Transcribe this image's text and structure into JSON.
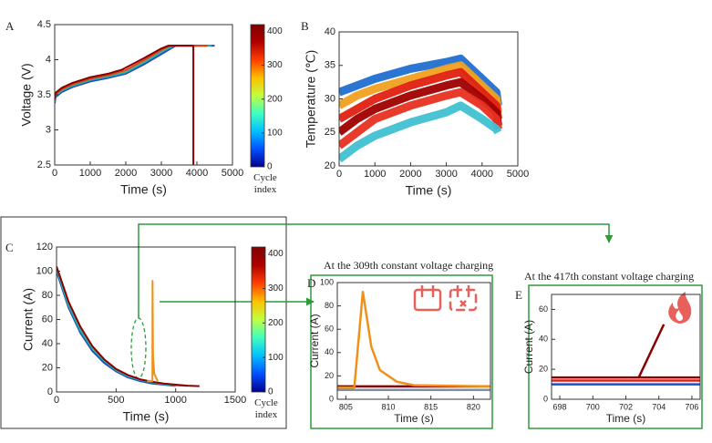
{
  "chart_data": [
    {
      "type": "line",
      "panel": "A",
      "xlabel": "Time (s)",
      "ylabel": "Voltage (V)",
      "xlim": [
        0,
        5000
      ],
      "ylim": [
        2.5,
        4.5
      ],
      "xticks": [
        0,
        1000,
        2000,
        3000,
        4000,
        5000
      ],
      "yticks": [
        2.5,
        3,
        3.5,
        4,
        4.5
      ],
      "colorbar": {
        "lim": [
          0,
          420
        ],
        "ticks": [
          0,
          100,
          200,
          300,
          400
        ],
        "label": "Cycle index",
        "colors": [
          "#00008f",
          "#0050ff",
          "#00c0ff",
          "#40ffc0",
          "#c0ff40",
          "#ffc000",
          "#ff4000",
          "#b00000",
          "#7f0000"
        ]
      },
      "series": [
        {
          "color": "#1f4fbf",
          "x": [
            0,
            30,
            200,
            500,
            1000,
            1500,
            2000,
            2500,
            3000,
            3400,
            4500
          ],
          "values": [
            3.38,
            3.47,
            3.54,
            3.61,
            3.69,
            3.74,
            3.8,
            3.93,
            4.08,
            4.2,
            4.2
          ]
        },
        {
          "color": "#2ab0a0",
          "x": [
            0,
            30,
            200,
            500,
            1000,
            1500,
            2000,
            2500,
            3000,
            3350,
            4400
          ],
          "values": [
            3.4,
            3.49,
            3.56,
            3.63,
            3.71,
            3.76,
            3.82,
            3.96,
            4.11,
            4.2,
            4.2
          ]
        },
        {
          "color": "#e04010",
          "x": [
            0,
            30,
            200,
            500,
            1000,
            1500,
            2000,
            2500,
            3000,
            3250,
            4300
          ],
          "values": [
            3.43,
            3.51,
            3.58,
            3.65,
            3.73,
            3.78,
            3.85,
            3.99,
            4.14,
            4.2,
            4.2
          ]
        },
        {
          "color": "#8b0000",
          "x": [
            0,
            30,
            200,
            500,
            1000,
            1500,
            1900,
            2500,
            3000,
            3200,
            3900,
            3900
          ],
          "values": [
            3.45,
            3.53,
            3.6,
            3.67,
            3.75,
            3.8,
            3.86,
            4.02,
            4.16,
            4.2,
            4.2,
            2.5
          ]
        }
      ]
    },
    {
      "type": "line",
      "panel": "B",
      "xlabel": "Time (s)",
      "ylabel": "Temperature (℃)",
      "xlim": [
        0,
        5000
      ],
      "ylim": [
        20,
        40
      ],
      "xticks": [
        0,
        1000,
        2000,
        3000,
        4000,
        5000
      ],
      "yticks": [
        20,
        25,
        30,
        35,
        40
      ],
      "series": [
        {
          "color": "#1f6fd0",
          "x": [
            0,
            500,
            1000,
            2000,
            3000,
            3400,
            4000,
            4400,
            4450
          ],
          "values": [
            31,
            32,
            33,
            34.5,
            35.5,
            36,
            33,
            31,
            29
          ]
        },
        {
          "color": "#f0a020",
          "x": [
            0,
            500,
            1000,
            2000,
            3000,
            3400,
            4000,
            4400,
            4450
          ],
          "values": [
            29,
            30.5,
            31.5,
            33,
            34.5,
            35,
            32,
            30,
            28
          ]
        },
        {
          "color": "#e02010",
          "x": [
            0,
            500,
            1000,
            2000,
            3000,
            3400,
            4000,
            4400,
            4450
          ],
          "values": [
            27,
            28.5,
            30,
            32,
            33.5,
            34,
            31,
            29,
            27
          ]
        },
        {
          "color": "#a00000",
          "x": [
            0,
            500,
            1000,
            2000,
            3000,
            3400,
            4000,
            4400,
            4450
          ],
          "values": [
            25,
            27,
            28.5,
            30.5,
            32,
            32.5,
            30,
            28,
            26
          ]
        },
        {
          "color": "#e83020",
          "x": [
            0,
            500,
            1000,
            2000,
            3000,
            3400,
            4000,
            4400,
            4450
          ],
          "values": [
            23,
            25,
            27,
            29,
            30.5,
            31,
            29,
            27,
            25.5
          ]
        },
        {
          "color": "#40c0d0",
          "x": [
            0,
            500,
            1000,
            2000,
            3000,
            3400,
            4000,
            4400,
            4450
          ],
          "values": [
            21,
            23,
            24.5,
            26.5,
            28,
            29,
            27,
            25.5,
            25
          ]
        }
      ]
    },
    {
      "type": "line",
      "panel": "C",
      "xlabel": "Time (s)",
      "ylabel": "Current (A)",
      "xlim": [
        0,
        1500
      ],
      "ylim": [
        0,
        120
      ],
      "xticks": [
        0,
        500,
        1000,
        1500
      ],
      "yticks": [
        0,
        20,
        40,
        60,
        80,
        100,
        120
      ],
      "colorbar": {
        "lim": [
          0,
          420
        ],
        "ticks": [
          0,
          100,
          200,
          300,
          400
        ],
        "label": "Cycle index",
        "colors": [
          "#00008f",
          "#0050ff",
          "#00c0ff",
          "#40ffc0",
          "#c0ff40",
          "#ffc000",
          "#ff4000",
          "#b00000",
          "#7f0000"
        ]
      },
      "series": [
        {
          "color": "#1f4fbf",
          "x": [
            0,
            100,
            200,
            300,
            400,
            500,
            600,
            700,
            800,
            900,
            1000
          ],
          "values": [
            100,
            70,
            49,
            34,
            24,
            17,
            12,
            9,
            7,
            6,
            5
          ]
        },
        {
          "color": "#2ab0a0",
          "x": [
            0,
            100,
            200,
            300,
            400,
            500,
            600,
            700,
            800,
            900,
            1000,
            1100
          ],
          "values": [
            102,
            72,
            51,
            36,
            26,
            18,
            13,
            10,
            8,
            6.5,
            5.5,
            5
          ]
        },
        {
          "color": "#8b0000",
          "x": [
            0,
            100,
            200,
            300,
            400,
            500,
            600,
            700,
            800,
            900,
            1000,
            1100,
            1200
          ],
          "values": [
            104,
            75,
            54,
            38,
            27,
            19,
            14,
            10.5,
            8.5,
            7,
            6,
            5.2,
            4.8
          ]
        },
        {
          "color": "#f0901a",
          "x": [
            760,
            805,
            806,
            810,
            820,
            850
          ],
          "values": [
            9,
            9,
            92,
            30,
            15,
            9
          ]
        }
      ]
    },
    {
      "type": "line",
      "panel": "D",
      "title": "At the 309th constant voltage charging",
      "xlabel": "Time (s)",
      "ylabel": "Current (A)",
      "xlim": [
        804,
        822
      ],
      "ylim": [
        0,
        100
      ],
      "xticks": [
        805,
        810,
        815,
        820
      ],
      "yticks": [
        0,
        20,
        40,
        60,
        80,
        100
      ],
      "series": [
        {
          "color": "#7f8fa0",
          "x": [
            804,
            822
          ],
          "values": [
            8,
            8
          ]
        },
        {
          "color": "#8b0000",
          "x": [
            804,
            822
          ],
          "values": [
            11,
            11
          ]
        },
        {
          "color": "#f0901a",
          "x": [
            804,
            806,
            807,
            808,
            809,
            811,
            813,
            822
          ],
          "values": [
            10,
            10,
            92,
            45,
            25,
            15,
            12,
            11
          ]
        }
      ]
    },
    {
      "type": "line",
      "panel": "E",
      "title": "At the 417th constant voltage charging",
      "xlabel": "Time (s)",
      "ylabel": "Current (A)",
      "xlim": [
        697.5,
        706.5
      ],
      "ylim": [
        0,
        70
      ],
      "xticks": [
        698,
        700,
        702,
        704,
        706
      ],
      "yticks": [
        0,
        20,
        40,
        60
      ],
      "series": [
        {
          "color": "#1f4fbf",
          "x": [
            697.5,
            706.5
          ],
          "values": [
            10,
            10
          ]
        },
        {
          "color": "#e02010",
          "x": [
            697.5,
            706.5
          ],
          "values": [
            12.5,
            12.5
          ]
        },
        {
          "color": "#8b0000",
          "x": [
            697.5,
            706.5
          ],
          "values": [
            14.5,
            14.5
          ]
        },
        {
          "color": "#8b0000",
          "x": [
            702.8,
            704.3
          ],
          "values": [
            15,
            50
          ]
        }
      ]
    }
  ]
}
